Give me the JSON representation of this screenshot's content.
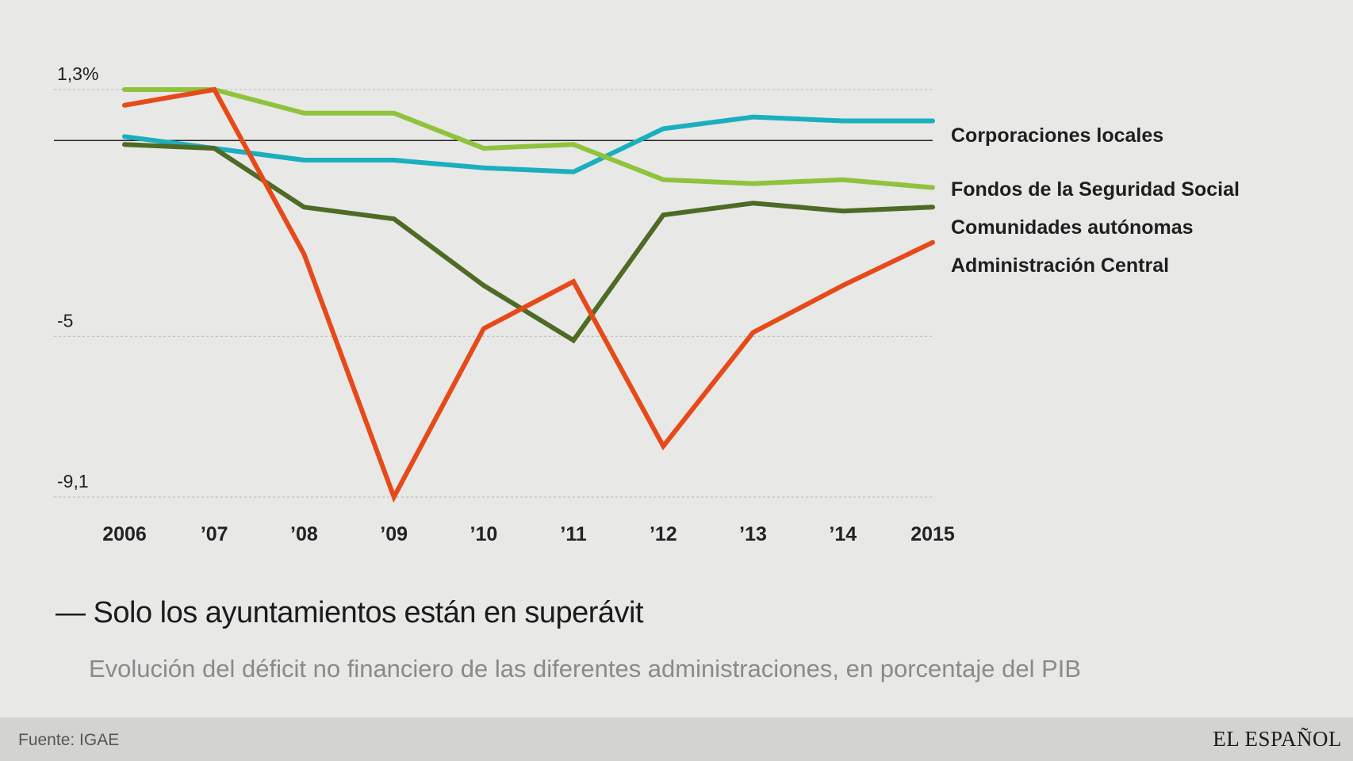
{
  "chart_data": {
    "type": "line",
    "title": "— Solo los ayuntamientos están en superávit",
    "subtitle": "Evolución del déficit no financiero de las diferentes administraciones, en porcentaje del PIB",
    "x": [
      "2006",
      "’07",
      "’08",
      "’09",
      "’10",
      "’11",
      "’12",
      "’13",
      "’14",
      "2015"
    ],
    "yticks": [
      {
        "value": 1.3,
        "label": "1,3%"
      },
      {
        "value": -5,
        "label": "-5"
      },
      {
        "value": -9.1,
        "label": "-9,1"
      }
    ],
    "ylim": [
      -9.1,
      1.3
    ],
    "zero_line": true,
    "series": [
      {
        "name": "Corporaciones locales",
        "color": "#1aafbf",
        "values": [
          0.1,
          -0.2,
          -0.5,
          -0.5,
          -0.7,
          -0.8,
          0.3,
          0.6,
          0.5,
          0.5
        ]
      },
      {
        "name": "Fondos de la Seguridad Social",
        "color": "#8fc33c",
        "values": [
          1.3,
          1.3,
          0.7,
          0.7,
          -0.2,
          -0.1,
          -1.0,
          -1.1,
          -1.0,
          -1.2
        ]
      },
      {
        "name": "Comunidades autónomas",
        "color": "#4d6b25",
        "values": [
          -0.1,
          -0.2,
          -1.7,
          -2.0,
          -3.7,
          -5.1,
          -1.9,
          -1.6,
          -1.8,
          -1.7
        ]
      },
      {
        "name": "Administración Central",
        "color": "#e64a1a",
        "values": [
          0.9,
          1.3,
          -2.9,
          -9.1,
          -4.8,
          -3.6,
          -7.8,
          -4.9,
          -3.7,
          -2.6
        ]
      }
    ]
  },
  "footer": {
    "source": "Fuente: IGAE",
    "logo": "EL ESPAÑOL"
  }
}
